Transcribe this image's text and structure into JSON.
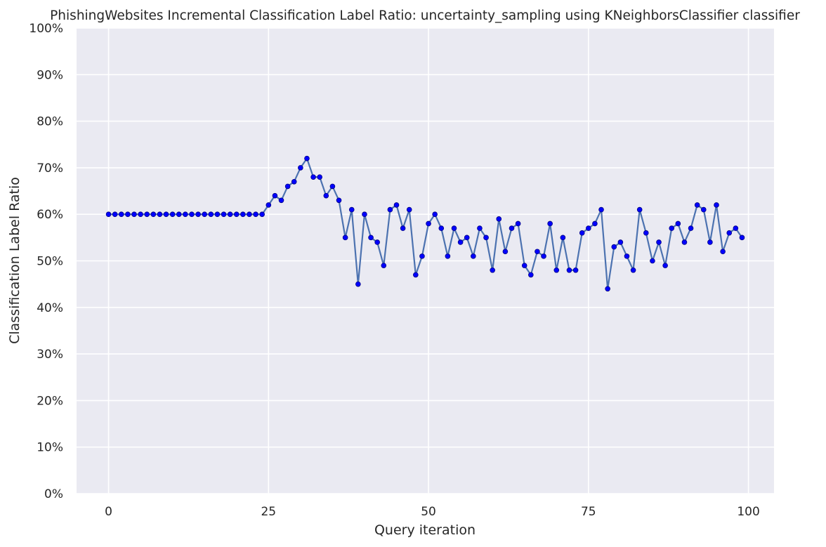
{
  "chart_data": {
    "type": "line",
    "title": "PhishingWebsites Incremental Classification Label Ratio: uncertainty_sampling using KNeighborsClassifier classifier",
    "xlabel": "Query iteration",
    "ylabel": "Classification Label Ratio",
    "xlim": [
      -5,
      104
    ],
    "ylim": [
      0,
      1
    ],
    "x_ticks": [
      0,
      25,
      50,
      75,
      100
    ],
    "y_ticks": [
      0,
      0.1,
      0.2,
      0.3,
      0.4,
      0.5,
      0.6,
      0.7,
      0.8,
      0.9,
      1.0
    ],
    "y_tick_labels": [
      "0%",
      "10%",
      "20%",
      "30%",
      "40%",
      "50%",
      "60%",
      "70%",
      "80%",
      "90%",
      "100%"
    ],
    "grid": true,
    "legend": "none",
    "colors": {
      "background": "#eaeaf2",
      "grid": "#ffffff",
      "line": "#4c72b0",
      "marker_fill": "#0000ff",
      "marker_edge": "#000080"
    },
    "series": [
      {
        "values": [
          0.6,
          0.6,
          0.6,
          0.6,
          0.6,
          0.6,
          0.6,
          0.6,
          0.6,
          0.6,
          0.6,
          0.6,
          0.6,
          0.6,
          0.6,
          0.6,
          0.6,
          0.6,
          0.6,
          0.6,
          0.6,
          0.6,
          0.6,
          0.6,
          0.6,
          0.62,
          0.64,
          0.63,
          0.66,
          0.67,
          0.7,
          0.72,
          0.68,
          0.68,
          0.64,
          0.66,
          0.63,
          0.55,
          0.61,
          0.45,
          0.6,
          0.55,
          0.54,
          0.49,
          0.61,
          0.62,
          0.57,
          0.61,
          0.47,
          0.51,
          0.58,
          0.6,
          0.57,
          0.51,
          0.57,
          0.54,
          0.55,
          0.51,
          0.57,
          0.55,
          0.48,
          0.59,
          0.52,
          0.57,
          0.58,
          0.49,
          0.47,
          0.52,
          0.51,
          0.58,
          0.48,
          0.55,
          0.48,
          0.48,
          0.56,
          0.57,
          0.58,
          0.61,
          0.44,
          0.53,
          0.54,
          0.51,
          0.48,
          0.61,
          0.56,
          0.5,
          0.54,
          0.49,
          0.57,
          0.58,
          0.54,
          0.57,
          0.62,
          0.61,
          0.54,
          0.62,
          0.52,
          0.56,
          0.57,
          0.55
        ]
      }
    ]
  }
}
